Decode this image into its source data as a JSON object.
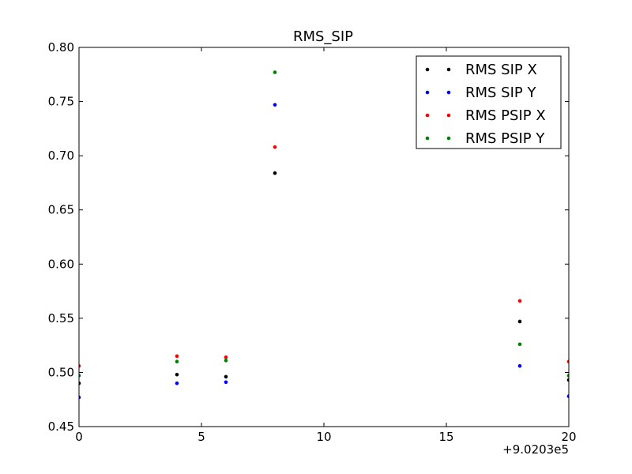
{
  "chart_data": {
    "type": "scatter",
    "title": "RMS_SIP",
    "xlabel": "",
    "ylabel": "",
    "x_offset_label": "+9.0203e5",
    "xlim": [
      0,
      20
    ],
    "ylim": [
      0.45,
      0.8
    ],
    "xticks": [
      0,
      5,
      10,
      15,
      20
    ],
    "xtick_labels": [
      "0",
      "5",
      "10",
      "15",
      "20"
    ],
    "yticks": [
      0.45,
      0.5,
      0.55,
      0.6,
      0.65,
      0.7,
      0.75,
      0.8
    ],
    "ytick_labels": [
      "0.45",
      "0.50",
      "0.55",
      "0.60",
      "0.65",
      "0.70",
      "0.75",
      "0.80"
    ],
    "grid": false,
    "legend_position": "top-right",
    "x": [
      0,
      4,
      6,
      8,
      18,
      20
    ],
    "series": [
      {
        "name": "RMS SIP X",
        "color": "#000000",
        "values": [
          0.49,
          0.498,
          0.496,
          0.684,
          0.547,
          0.493
        ]
      },
      {
        "name": "RMS SIP Y",
        "color": "#0000ff",
        "values": [
          0.477,
          0.49,
          0.491,
          0.747,
          0.506,
          0.478
        ]
      },
      {
        "name": "RMS PSIP X",
        "color": "#ff0000",
        "values": [
          0.506,
          0.515,
          0.514,
          0.708,
          0.566,
          0.51
        ]
      },
      {
        "name": "RMS PSIP Y",
        "color": "#008000",
        "values": [
          0.497,
          0.51,
          0.511,
          0.777,
          0.526,
          0.497
        ]
      }
    ]
  }
}
